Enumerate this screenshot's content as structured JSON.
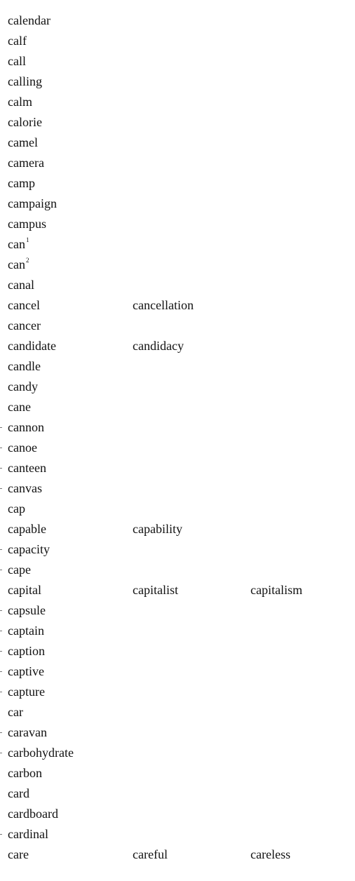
{
  "rows": [
    {
      "word": "calendar"
    },
    {
      "word": "calf"
    },
    {
      "word": "call"
    },
    {
      "word": "calling"
    },
    {
      "word": "calm"
    },
    {
      "word": "calorie"
    },
    {
      "word": "camel"
    },
    {
      "word": "camera"
    },
    {
      "word": "camp"
    },
    {
      "word": "campaign"
    },
    {
      "word": "campus"
    },
    {
      "word": "can",
      "sup": "1"
    },
    {
      "word": "can",
      "sup": "2"
    },
    {
      "word": "canal"
    },
    {
      "word": "cancel",
      "related1": "cancellation"
    },
    {
      "word": "cancer"
    },
    {
      "word": "candidate",
      "related1": "candidacy"
    },
    {
      "word": "candle"
    },
    {
      "word": "candy"
    },
    {
      "word": "cane"
    },
    {
      "word": "cannon",
      "tick": true
    },
    {
      "word": "canoe",
      "tick": true
    },
    {
      "word": "canteen",
      "tick": true
    },
    {
      "word": "canvas",
      "tick": true
    },
    {
      "word": "cap"
    },
    {
      "word": "capable",
      "related1": "capability"
    },
    {
      "word": "capacity",
      "tick": true
    },
    {
      "word": "cape",
      "tick": true
    },
    {
      "word": "capital",
      "related1": "capitalist",
      "related2": "capitalism"
    },
    {
      "word": "capsule",
      "tick": true
    },
    {
      "word": "captain",
      "tick": true
    },
    {
      "word": "caption",
      "tick": true
    },
    {
      "word": "captive",
      "tick": true
    },
    {
      "word": "capture",
      "tick": true
    },
    {
      "word": "car"
    },
    {
      "word": "caravan",
      "tick": true
    },
    {
      "word": "carbohydrate",
      "tick": true
    },
    {
      "word": "carbon"
    },
    {
      "word": "card"
    },
    {
      "word": "cardboard"
    },
    {
      "word": "cardinal",
      "tick": true
    },
    {
      "word": "care",
      "related1": "careful",
      "related2": "careless"
    }
  ]
}
